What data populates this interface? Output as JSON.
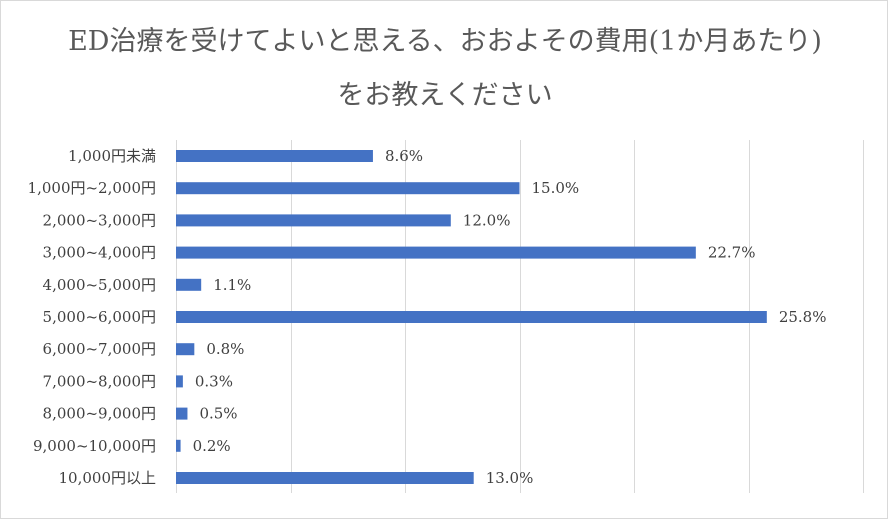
{
  "chart_data": {
    "type": "bar",
    "orientation": "horizontal",
    "title": "ED治療を受けてよいと思える、おおよその費用(1か月あたり)をお教えください",
    "categories": [
      "1,000円未満",
      "1,000円~2,000円",
      "2,000~3,000円",
      "3,000~4,000円",
      "4,000~5,000円",
      "5,000~6,000円",
      "6,000~7,000円",
      "7,000~8,000円",
      "8,000~9,000円",
      "9,000~10,000円",
      "10,000円以上"
    ],
    "values": [
      8.6,
      15.0,
      12.0,
      22.7,
      1.1,
      25.8,
      0.8,
      0.3,
      0.5,
      0.2,
      13.0
    ],
    "data_labels": [
      "8.6%",
      "15.0%",
      "12.0%",
      "22.7%",
      "1.1%",
      "25.8%",
      "0.8%",
      "0.3%",
      "0.5%",
      "0.2%",
      "13.0%"
    ],
    "xlim": [
      0,
      30
    ],
    "x_gridlines": [
      0,
      5,
      10,
      15,
      20,
      25,
      30
    ],
    "grid": "vertical",
    "legend": "none",
    "bar_color": "#4472c4",
    "gridline_color": "#d9d9d9"
  }
}
